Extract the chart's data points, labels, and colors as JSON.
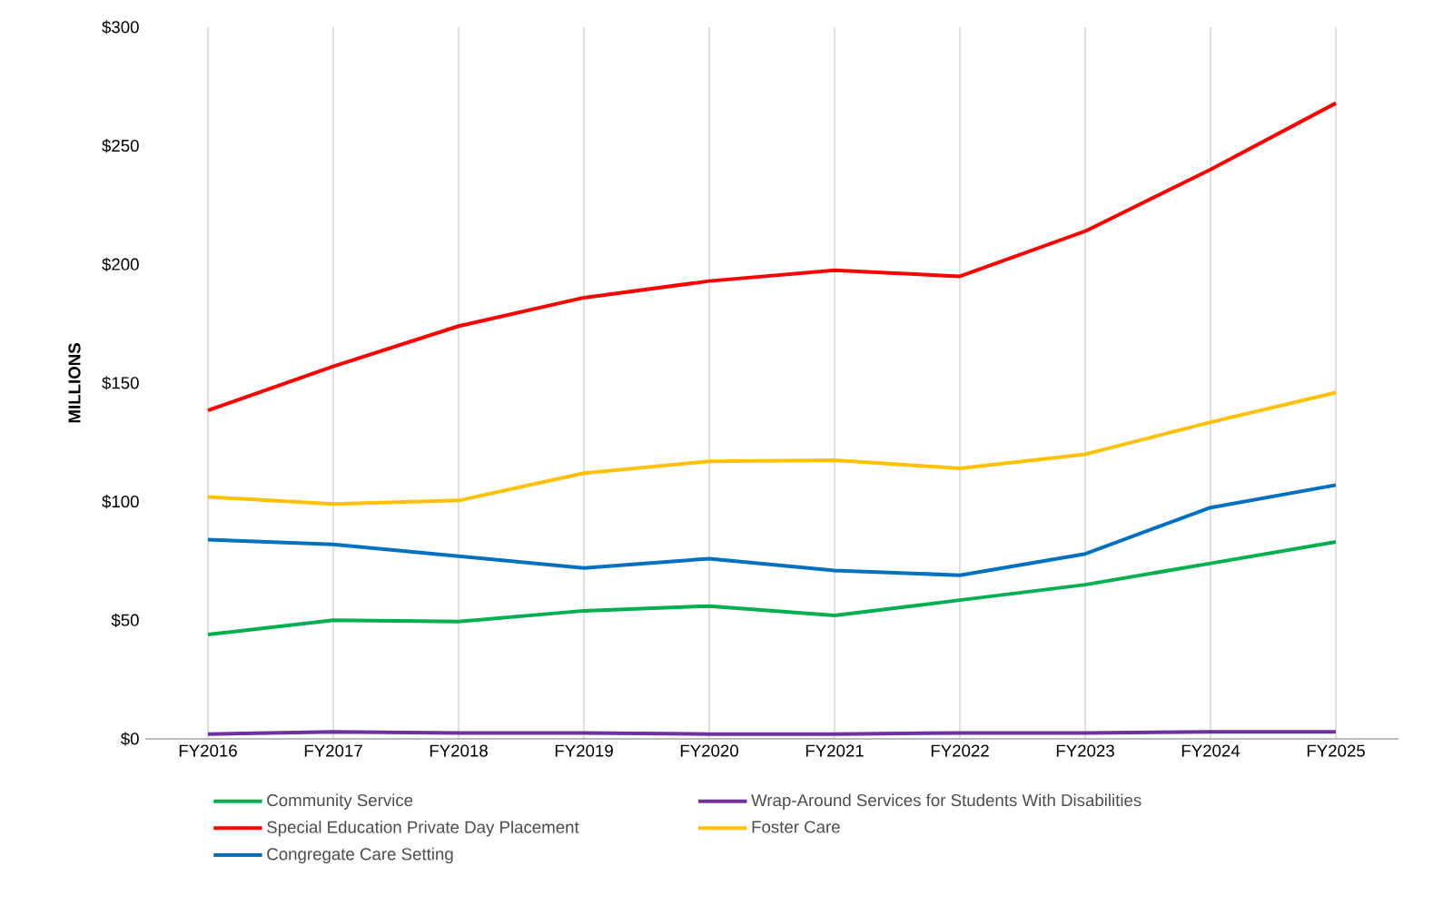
{
  "chart_data": {
    "type": "line",
    "ylabel": "MILLIONS",
    "categories": [
      "FY2016",
      "FY2017",
      "FY2018",
      "FY2019",
      "FY2020",
      "FY2021",
      "FY2022",
      "FY2023",
      "FY2024",
      "FY2025"
    ],
    "series": [
      {
        "name": "Community Service",
        "color": "#00b050",
        "values": [
          44,
          50,
          49.5,
          54,
          56,
          52,
          58.5,
          65,
          74,
          83
        ]
      },
      {
        "name": "Wrap-Around Services for Students With Disabilities",
        "color": "#7030a0",
        "values": [
          2,
          3,
          2.5,
          2.5,
          2,
          2,
          2.5,
          2.5,
          3,
          3
        ]
      },
      {
        "name": "Special Education Private Day Placement",
        "color": "#ff0000",
        "values": [
          138.5,
          157,
          174,
          186,
          193,
          197.5,
          195,
          214,
          240,
          268
        ]
      },
      {
        "name": "Foster Care",
        "color": "#ffc000",
        "values": [
          102,
          99,
          100.5,
          112,
          117,
          117.5,
          114,
          120,
          133.5,
          146
        ]
      },
      {
        "name": "Congregate Care Setting",
        "color": "#0070c0",
        "values": [
          84,
          82,
          77,
          72,
          76,
          71,
          69,
          78,
          97.5,
          107
        ]
      }
    ],
    "ylim": [
      0,
      300
    ],
    "yticks": [
      {
        "value": 0,
        "label": "$0"
      },
      {
        "value": 50,
        "label": "$50"
      },
      {
        "value": 100,
        "label": "$100"
      },
      {
        "value": 150,
        "label": "$150"
      },
      {
        "value": 200,
        "label": "$200"
      },
      {
        "value": 250,
        "label": "$250"
      },
      {
        "value": 300,
        "label": "$300"
      }
    ],
    "grid": "x",
    "legend": "bottom",
    "marker": "none",
    "line_style": "solid"
  }
}
